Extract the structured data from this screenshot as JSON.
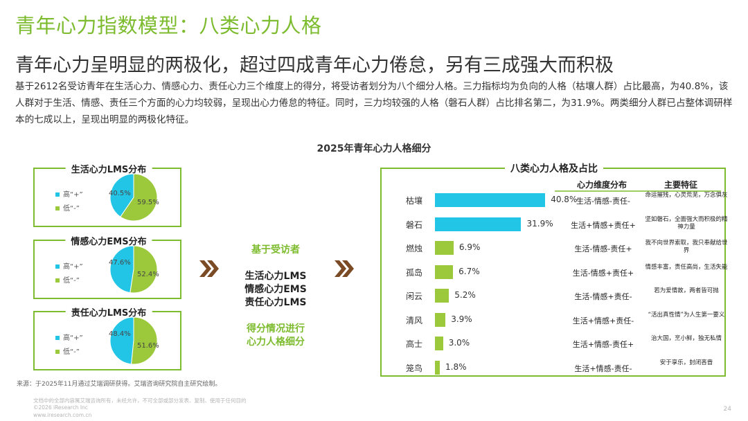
{
  "title": "青年心力指数模型：八类心力人格",
  "subtitle": "青年心力呈明显的两极化，超过四成青年心力倦怠，另有三成强大而积极",
  "intro": "基于2612名受访青年在生活心力、情感心力、责任心力三个维度上的得分，将受访者划分为八个细分人格。三力指标均为负向的人格（枯壤人群）占比最高，为40.8%，该人群对于生活、情感、责任三个方面的心力均较弱，呈现出心力倦怠的特征。同时，三力均较强的人格（磐石人群）占比排名第二，为31.9%。两类细分人群已占整体调研样本的七成以上，呈现出明显的两极化特征。",
  "chart_title": "2025年青年心力人格细分",
  "colors": {
    "accent": "#7dbb2f",
    "cyan": "#22c5e6",
    "lime": "#9cc93c",
    "arrow": "#7a4b25"
  },
  "middle": {
    "line1": "基于受访者",
    "line2": "生活心力LMS",
    "line3": "情感心力EMS",
    "line4": "责任心力LMS",
    "line5": "得分情况进行",
    "line6": "心力人格细分"
  },
  "right_panel": {
    "title": "八类心力人格及占比",
    "col_dist": "心力维度分布",
    "col_feat": "主要特征"
  },
  "chart_data": [
    {
      "type": "pie",
      "title": "生活心力LMS分布",
      "legend": [
        "高“+”",
        "低“-”"
      ],
      "categories": [
        "高“+”",
        "低“-”"
      ],
      "values": [
        40.5,
        59.5
      ],
      "labels": [
        "40.5%",
        "59.5%"
      ]
    },
    {
      "type": "pie",
      "title": "情感心力EMS分布",
      "legend": [
        "高“+”",
        "低“-”"
      ],
      "categories": [
        "高“+”",
        "低“-”"
      ],
      "values": [
        47.6,
        52.4
      ],
      "labels": [
        "47.6%",
        "52.4%"
      ]
    },
    {
      "type": "pie",
      "title": "责任心力LMS分布",
      "legend": [
        "高“+”",
        "低“-”"
      ],
      "categories": [
        "高“+”",
        "低“-”"
      ],
      "values": [
        48.4,
        51.6
      ],
      "labels": [
        "48.4%",
        "51.6%"
      ]
    },
    {
      "type": "bar",
      "orientation": "horizontal",
      "title": "八类心力人格及占比",
      "categories": [
        "枯壤",
        "磐石",
        "燃烛",
        "孤岛",
        "闲云",
        "清风",
        "高士",
        "笼鸟"
      ],
      "values": [
        40.8,
        31.9,
        6.9,
        6.7,
        5.2,
        3.9,
        3.0,
        1.8
      ],
      "labels": [
        "40.8%",
        "31.9%",
        "6.9%",
        "6.7%",
        "5.2%",
        "3.9%",
        "3.0%",
        "1.8%"
      ],
      "xlim": [
        0,
        41
      ],
      "dimensions": [
        "生活-情感-责任-",
        "生活+情感+责任+",
        "生活-情感-责任+",
        "生活-情感+责任+",
        "生活-情感+责任-",
        "生活+情感+责任-",
        "生活+情感-责任+",
        "生活+情感-责任-"
      ],
      "features": [
        "命运摧残，心灵荒芜，万念俱灰",
        "坚如磐石，全面强大而积极的精神力量",
        "我不向世界索取，我只奉献给世界",
        "情感丰富，责任高尚，生活失能",
        "若为爱情故，两者皆可抛",
        "“活出真性情”为人生第一要义",
        "治大国，烹小鲜，独无私情",
        "安于享乐，封闭吝啬"
      ]
    }
  ],
  "source": "来源：于2025年11月通过艾瑞调研获得。艾瑞咨询研究院自主研究绘制。",
  "footer": {
    "line1": "文档中的全部内容属艾瑞咨询所有，未经允许，不可全部或部分发表、复制、使用于任何目的",
    "line2": "©2026 iResearch Inc",
    "line3": "www.iresearch.com.cn"
  },
  "page_number": "24"
}
